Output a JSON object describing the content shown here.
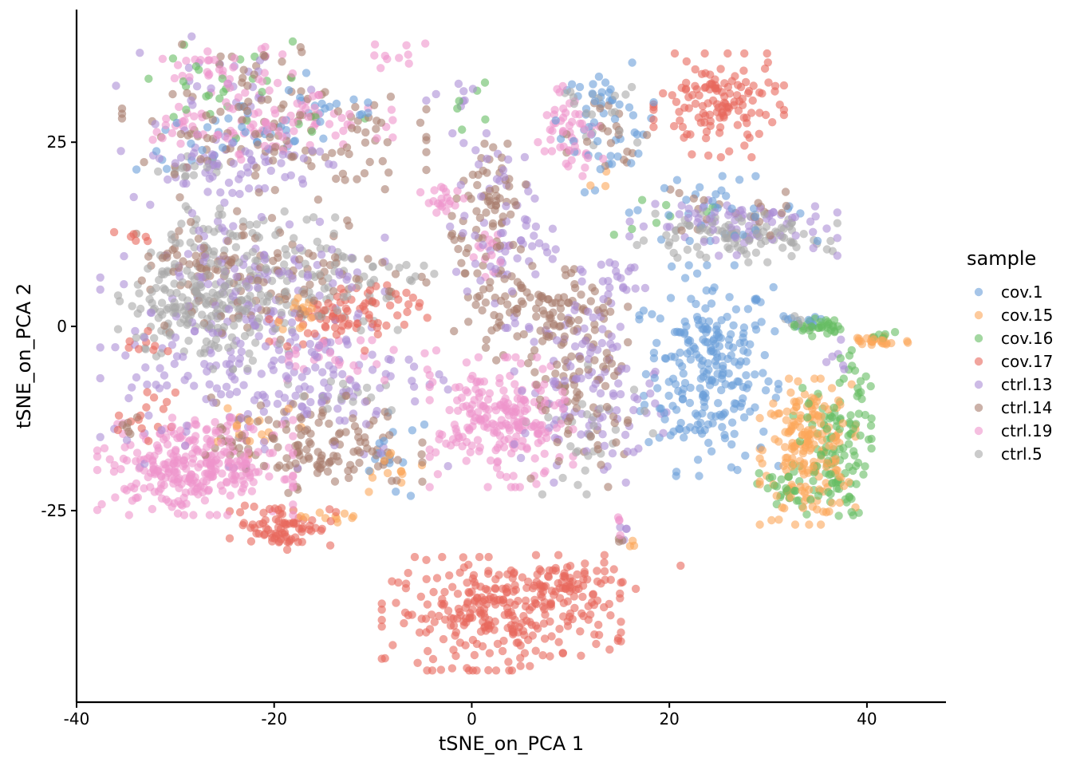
{
  "chart_data": {
    "type": "scatter",
    "title": "",
    "xlabel": "tSNE_on_PCA 1",
    "ylabel": "tSNE_on_PCA 2",
    "xlim": [
      -40,
      48
    ],
    "ylim": [
      -51,
      43
    ],
    "xticks": [
      -40,
      -20,
      0,
      20,
      40
    ],
    "xtick_labels": [
      "-40",
      "-20",
      "0",
      "20",
      "40"
    ],
    "yticks": [
      -25,
      0,
      25
    ],
    "ytick_labels": [
      "-25",
      "0",
      "25"
    ],
    "grid": false,
    "legend": {
      "title": "sample",
      "position": "right"
    },
    "point_alpha": 0.6,
    "series": [
      {
        "name": "cov.1",
        "color": "#6a9fd8",
        "clusters": [
          {
            "cx": 24,
            "cy": -6,
            "sx": 3.2,
            "sy": 6.5,
            "n": 240
          },
          {
            "cx": 14,
            "cy": 27,
            "sx": 2.5,
            "sy": 4,
            "n": 40
          },
          {
            "cx": 24,
            "cy": 16,
            "sx": 5,
            "sy": 2,
            "n": 35
          },
          {
            "cx": -24,
            "cy": 25,
            "sx": 5,
            "sy": 2,
            "n": 35
          },
          {
            "cx": -15,
            "cy": 30,
            "sx": 4,
            "sy": 2,
            "n": 20
          },
          {
            "cx": -8,
            "cy": -18,
            "sx": 2,
            "sy": 3,
            "n": 15
          },
          {
            "cx": 33,
            "cy": 0.5,
            "sx": 1.5,
            "sy": 0.6,
            "n": 12
          },
          {
            "cx": 13,
            "cy": 31,
            "sx": 1.5,
            "sy": 1,
            "n": 12
          }
        ]
      },
      {
        "name": "cov.15",
        "color": "#fca65a",
        "clusters": [
          {
            "cx": 34,
            "cy": -17,
            "sx": 2.2,
            "sy": 4.5,
            "n": 200
          },
          {
            "cx": 41,
            "cy": -2,
            "sx": 1.8,
            "sy": 0.5,
            "n": 25
          },
          {
            "cx": -17,
            "cy": 2,
            "sx": 1.5,
            "sy": 1.5,
            "n": 15
          },
          {
            "cx": -22,
            "cy": -13,
            "sx": 3,
            "sy": 2,
            "n": 15
          },
          {
            "cx": -8,
            "cy": -20,
            "sx": 2,
            "sy": 1.5,
            "n": 12
          },
          {
            "cx": -14,
            "cy": -26,
            "sx": 1.5,
            "sy": 1,
            "n": 10
          },
          {
            "cx": 16,
            "cy": -30,
            "sx": 0.5,
            "sy": 0.5,
            "n": 3
          },
          {
            "cx": 12,
            "cy": 20,
            "sx": 1,
            "sy": 1,
            "n": 3
          }
        ]
      },
      {
        "name": "cov.16",
        "color": "#66bd63",
        "clusters": [
          {
            "cx": 36.5,
            "cy": -17,
            "sx": 1.8,
            "sy": 4.5,
            "n": 110
          },
          {
            "cx": 35,
            "cy": 0,
            "sx": 1.2,
            "sy": 0.6,
            "n": 35
          },
          {
            "cx": 31.5,
            "cy": -22,
            "sx": 1.2,
            "sy": 1.5,
            "n": 25
          },
          {
            "cx": 39,
            "cy": -8,
            "sx": 0.8,
            "sy": 2.5,
            "n": 15
          },
          {
            "cx": 42,
            "cy": -1.5,
            "sx": 1,
            "sy": 0.4,
            "n": 6
          },
          {
            "cx": -24,
            "cy": 32,
            "sx": 6,
            "sy": 4,
            "n": 30
          },
          {
            "cx": 21,
            "cy": 15,
            "sx": 3,
            "sy": 2,
            "n": 8
          },
          {
            "cx": -2,
            "cy": 30,
            "sx": 2,
            "sy": 1.5,
            "n": 6
          }
        ]
      },
      {
        "name": "cov.17",
        "color": "#e8675c",
        "clusters": [
          {
            "cx": 3,
            "cy": -39,
            "sx": 5.5,
            "sy": 3.5,
            "n": 280
          },
          {
            "cx": 10,
            "cy": -35,
            "sx": 3,
            "sy": 1.8,
            "n": 60
          },
          {
            "cx": 25,
            "cy": 30,
            "sx": 3,
            "sy": 3.2,
            "n": 130
          },
          {
            "cx": -19,
            "cy": -27,
            "sx": 2.5,
            "sy": 1.5,
            "n": 80
          },
          {
            "cx": -15,
            "cy": 1,
            "sx": 2.5,
            "sy": 2,
            "n": 50
          },
          {
            "cx": -10,
            "cy": 2,
            "sx": 2.5,
            "sy": 2,
            "n": 30
          },
          {
            "cx": -33,
            "cy": -13,
            "sx": 1.5,
            "sy": 2,
            "n": 15
          },
          {
            "cx": -34,
            "cy": 12,
            "sx": 1,
            "sy": 0.5,
            "n": 6
          },
          {
            "cx": -33,
            "cy": -2,
            "sx": 1.5,
            "sy": 1,
            "n": 8
          },
          {
            "cx": 21,
            "cy": -32.5,
            "sx": 0.3,
            "sy": 0.3,
            "n": 1
          }
        ]
      },
      {
        "name": "ctrl.13",
        "color": "#ab8ed6",
        "clusters": [
          {
            "cx": -20,
            "cy": -6,
            "sx": 8,
            "sy": 6,
            "n": 220
          },
          {
            "cx": -22,
            "cy": 8,
            "sx": 6,
            "sy": 4,
            "n": 90
          },
          {
            "cx": -25,
            "cy": 22,
            "sx": 5,
            "sy": 2.5,
            "n": 70
          },
          {
            "cx": 12,
            "cy": -8,
            "sx": 3.5,
            "sy": 6,
            "n": 120
          },
          {
            "cx": 3,
            "cy": 13,
            "sx": 2.5,
            "sy": 6,
            "n": 70
          },
          {
            "cx": 26,
            "cy": 14,
            "sx": 5,
            "sy": 2,
            "n": 70
          },
          {
            "cx": 14,
            "cy": 7,
            "sx": 2,
            "sy": 1.5,
            "n": 20
          },
          {
            "cx": -25,
            "cy": 33,
            "sx": 5,
            "sy": 3,
            "n": 25
          },
          {
            "cx": -2,
            "cy": 31,
            "sx": 1.5,
            "sy": 1,
            "n": 8
          },
          {
            "cx": 37,
            "cy": -4,
            "sx": 1,
            "sy": 1,
            "n": 6
          },
          {
            "cx": 15,
            "cy": -28,
            "sx": 0.4,
            "sy": 1,
            "n": 4
          }
        ]
      },
      {
        "name": "ctrl.14",
        "color": "#a97d6e",
        "clusters": [
          {
            "cx": -16,
            "cy": -16,
            "sx": 5,
            "sy": 3,
            "n": 140
          },
          {
            "cx": -20,
            "cy": 7,
            "sx": 7,
            "sy": 4,
            "n": 110
          },
          {
            "cx": -20,
            "cy": 26,
            "sx": 7,
            "sy": 4,
            "n": 110
          },
          {
            "cx": 7,
            "cy": 2,
            "sx": 4,
            "sy": 3,
            "n": 110
          },
          {
            "cx": 2,
            "cy": 16,
            "sx": 2,
            "sy": 4,
            "n": 70
          },
          {
            "cx": 11,
            "cy": -10,
            "sx": 3,
            "sy": 6,
            "n": 80
          },
          {
            "cx": -28,
            "cy": 9,
            "sx": 3,
            "sy": 1.5,
            "n": 25
          },
          {
            "cx": 27,
            "cy": 16,
            "sx": 4,
            "sy": 2,
            "n": 20
          },
          {
            "cx": -24,
            "cy": 34,
            "sx": 5,
            "sy": 2,
            "n": 20
          },
          {
            "cx": 14,
            "cy": 27,
            "sx": 2,
            "sy": 3,
            "n": 20
          },
          {
            "cx": 15,
            "cy": -29,
            "sx": 0.3,
            "sy": 0.5,
            "n": 3
          },
          {
            "cx": -35,
            "cy": -12,
            "sx": 1,
            "sy": 2,
            "n": 6
          }
        ]
      },
      {
        "name": "ctrl.19",
        "color": "#ee95cc",
        "clusters": [
          {
            "cx": -28,
            "cy": -19,
            "sx": 4.5,
            "sy": 3,
            "n": 300
          },
          {
            "cx": 3,
            "cy": -13,
            "sx": 3.3,
            "sy": 4,
            "n": 220
          },
          {
            "cx": -19,
            "cy": 27,
            "sx": 5,
            "sy": 2,
            "n": 80
          },
          {
            "cx": -25,
            "cy": 35,
            "sx": 4,
            "sy": 1.5,
            "n": 35
          },
          {
            "cx": 10,
            "cy": 27,
            "sx": 1.5,
            "sy": 3,
            "n": 50
          },
          {
            "cx": -3,
            "cy": 17,
            "sx": 1,
            "sy": 1,
            "n": 20
          },
          {
            "cx": -12,
            "cy": -4,
            "sx": 5,
            "sy": 1.5,
            "n": 30
          },
          {
            "cx": -30,
            "cy": 27,
            "sx": 1.5,
            "sy": 1,
            "n": 12
          },
          {
            "cx": 2,
            "cy": 10,
            "sx": 1,
            "sy": 1.5,
            "n": 15
          },
          {
            "cx": -8,
            "cy": 37,
            "sx": 1.5,
            "sy": 1,
            "n": 10
          },
          {
            "cx": 15,
            "cy": -28,
            "sx": 0.3,
            "sy": 1.2,
            "n": 4
          }
        ]
      },
      {
        "name": "ctrl.5",
        "color": "#a9a9a9",
        "clusters": [
          {
            "cx": -27,
            "cy": 3,
            "sx": 4,
            "sy": 4,
            "n": 190
          },
          {
            "cx": -17,
            "cy": 6,
            "sx": 6,
            "sy": 3,
            "n": 90
          },
          {
            "cx": 26,
            "cy": 12,
            "sx": 5,
            "sy": 1.5,
            "n": 100
          },
          {
            "cx": -24,
            "cy": 13,
            "sx": 5,
            "sy": 1.5,
            "n": 40
          },
          {
            "cx": -29,
            "cy": 21,
            "sx": 2,
            "sy": 1,
            "n": 15
          },
          {
            "cx": 12,
            "cy": -14,
            "sx": 3,
            "sy": 4,
            "n": 30
          },
          {
            "cx": 13,
            "cy": 29,
            "sx": 2,
            "sy": 2,
            "n": 20
          },
          {
            "cx": -12,
            "cy": -9,
            "sx": 3,
            "sy": 1.5,
            "n": 15
          },
          {
            "cx": 33,
            "cy": 0.5,
            "sx": 1,
            "sy": 0.5,
            "n": 6
          }
        ]
      }
    ]
  }
}
